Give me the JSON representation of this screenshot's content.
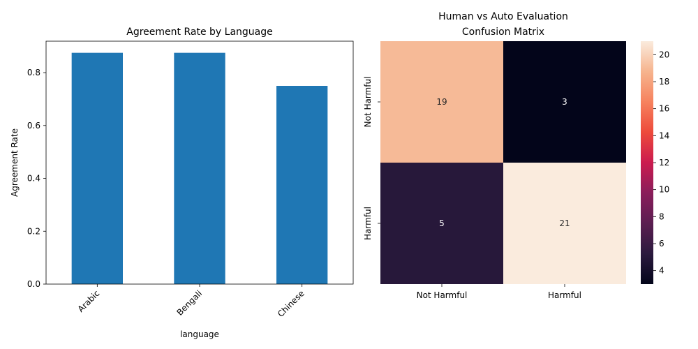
{
  "chart_data": [
    {
      "type": "bar",
      "title": "Agreement Rate by Language",
      "xlabel": "language",
      "ylabel": "Agreement Rate",
      "categories": [
        "Arabic",
        "Bengali",
        "Chinese"
      ],
      "values": [
        0.875,
        0.875,
        0.75
      ],
      "ylim": [
        0,
        0.919
      ],
      "yticks": [
        0.0,
        0.2,
        0.4,
        0.6,
        0.8
      ],
      "ytick_labels": [
        "0.0",
        "0.2",
        "0.4",
        "0.6",
        "0.8"
      ],
      "bar_color": "#1f77b4",
      "grid": false,
      "xtick_rotation": 45
    },
    {
      "type": "heatmap",
      "title_lines": [
        "Human vs Auto Evaluation",
        "Confusion Matrix"
      ],
      "row_labels": [
        "Not Harmful",
        "Harmful"
      ],
      "col_labels": [
        "Not Harmful",
        "Harmful"
      ],
      "values": [
        [
          19,
          3
        ],
        [
          5,
          21
        ]
      ],
      "colormap": "rocket",
      "vmin": 3,
      "vmax": 21,
      "colorbar_ticks": [
        4,
        6,
        8,
        10,
        12,
        14,
        16,
        18,
        20
      ],
      "annotate": true
    }
  ]
}
